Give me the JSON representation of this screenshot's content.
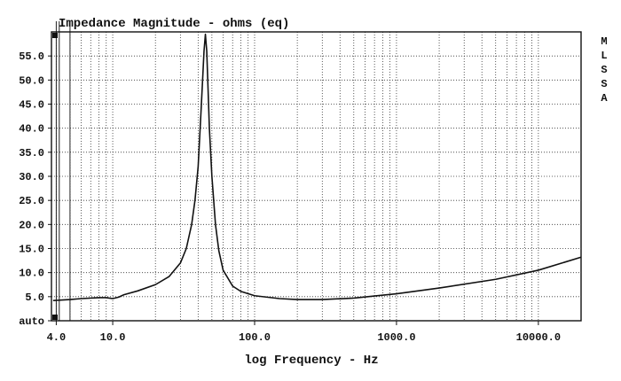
{
  "chart_data": {
    "type": "line",
    "title": "Impedance Magnitude - ohms (eq)",
    "xlabel": "log Frequency - Hz",
    "ylabel": "",
    "x_scale": "log",
    "xlim": [
      3.7,
      20000
    ],
    "ylim": [
      0,
      60
    ],
    "y_ticks": [
      {
        "value": 0,
        "label": "auto"
      },
      {
        "value": 5,
        "label": "5.0"
      },
      {
        "value": 10,
        "label": "10.0"
      },
      {
        "value": 15,
        "label": "15.0"
      },
      {
        "value": 20,
        "label": "20.0"
      },
      {
        "value": 25,
        "label": "25.0"
      },
      {
        "value": 30,
        "label": "30.0"
      },
      {
        "value": 35,
        "label": "35.0"
      },
      {
        "value": 40,
        "label": "40.0"
      },
      {
        "value": 45,
        "label": "45.0"
      },
      {
        "value": 50,
        "label": "50.0"
      },
      {
        "value": 55,
        "label": "55.0"
      }
    ],
    "x_ticks": [
      {
        "value": 4,
        "label": "4.0"
      },
      {
        "value": 10,
        "label": "10.0"
      },
      {
        "value": 100,
        "label": "100.0"
      },
      {
        "value": 1000,
        "label": "1000.0"
      },
      {
        "value": 10000,
        "label": "10000.0"
      }
    ],
    "grid": true,
    "side_label": [
      "M",
      "L",
      "S",
      "S",
      "A"
    ],
    "series": [
      {
        "name": "Impedance",
        "color": "#111111",
        "x": [
          3.8,
          5,
          6,
          8,
          9,
          10,
          11,
          12,
          15,
          20,
          25,
          30,
          33,
          36,
          38,
          40,
          41,
          42,
          43,
          44,
          45,
          46,
          47,
          48,
          50,
          53,
          56,
          60,
          70,
          80,
          100,
          150,
          200,
          300,
          500,
          1000,
          2000,
          5000,
          10000,
          20000
        ],
        "y": [
          4.2,
          4.4,
          4.6,
          4.8,
          4.8,
          4.6,
          4.9,
          5.4,
          6.2,
          7.5,
          9.2,
          12.0,
          15.0,
          20.0,
          25.0,
          32.0,
          38.0,
          44.0,
          50.0,
          56.0,
          59.5,
          56.0,
          48.0,
          40.0,
          30.0,
          20.0,
          14.5,
          10.5,
          7.2,
          6.1,
          5.2,
          4.6,
          4.4,
          4.4,
          4.7,
          5.6,
          6.8,
          8.6,
          10.5,
          13.2
        ]
      }
    ]
  }
}
